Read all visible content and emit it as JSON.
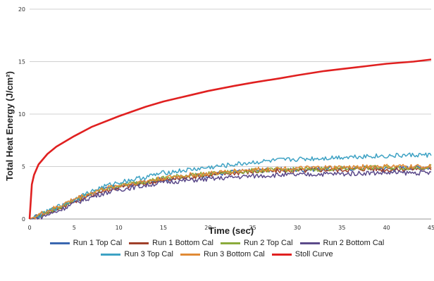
{
  "chart_data": {
    "type": "line",
    "ylabel": "Total Heat Energy (J/cm²)",
    "xlabel": "Time (sec)",
    "xlim": [
      0,
      45
    ],
    "ylim": [
      0,
      20
    ],
    "x_ticks": [
      "0",
      "5",
      "10",
      "15",
      "20",
      "25",
      "30",
      "35",
      "40",
      "45"
    ],
    "y_ticks": [
      "0",
      "5",
      "10",
      "15",
      "20"
    ],
    "grid": "horizontal",
    "legend_position": "bottom",
    "series": [
      {
        "name": "Run 1 Top Cal",
        "color": "#3a67b0",
        "x": [
          0,
          1,
          3,
          5,
          8,
          10,
          13,
          15,
          18,
          20,
          23,
          25,
          28,
          30,
          33,
          35,
          38,
          40,
          43,
          45
        ],
        "y": [
          0,
          0.3,
          1.0,
          1.8,
          2.7,
          3.1,
          3.5,
          3.8,
          4.1,
          4.2,
          4.5,
          4.6,
          4.7,
          4.7,
          4.8,
          4.8,
          4.9,
          4.8,
          4.9,
          4.9
        ]
      },
      {
        "name": "Run 1 Bottom Cal",
        "color": "#a0402a",
        "x": [
          0,
          1,
          3,
          5,
          8,
          10,
          13,
          15,
          18,
          20,
          23,
          25,
          28,
          30,
          33,
          35,
          38,
          40,
          43,
          45
        ],
        "y": [
          0,
          0.3,
          0.9,
          1.7,
          2.6,
          3.0,
          3.4,
          3.7,
          4.0,
          4.2,
          4.4,
          4.5,
          4.6,
          4.6,
          4.7,
          4.7,
          4.8,
          4.7,
          4.8,
          4.8
        ]
      },
      {
        "name": "Run 2 Top Cal",
        "color": "#8bab3c",
        "x": [
          0,
          1,
          3,
          5,
          8,
          10,
          13,
          15,
          18,
          20,
          23,
          25,
          28,
          30,
          33,
          35,
          38,
          40,
          43,
          45
        ],
        "y": [
          0,
          0.3,
          1.0,
          1.8,
          2.8,
          3.2,
          3.6,
          3.9,
          4.2,
          4.3,
          4.5,
          4.6,
          4.7,
          4.7,
          4.8,
          4.8,
          4.9,
          4.9,
          4.9,
          5.0
        ]
      },
      {
        "name": "Run 2 Bottom Cal",
        "color": "#5b4a8a",
        "x": [
          0,
          1,
          3,
          5,
          8,
          10,
          13,
          15,
          18,
          20,
          23,
          25,
          28,
          30,
          33,
          35,
          38,
          40,
          43,
          45
        ],
        "y": [
          0,
          0.1,
          0.7,
          1.5,
          2.4,
          2.8,
          3.2,
          3.5,
          3.7,
          3.8,
          4.0,
          4.1,
          4.2,
          4.2,
          4.3,
          4.3,
          4.4,
          4.4,
          4.4,
          4.4
        ]
      },
      {
        "name": "Run 3 Top Cal",
        "color": "#3ea2c4",
        "x": [
          0,
          1,
          3,
          5,
          8,
          10,
          13,
          15,
          18,
          20,
          23,
          25,
          28,
          30,
          33,
          35,
          38,
          40,
          43,
          45
        ],
        "y": [
          0,
          0.3,
          1.1,
          1.9,
          3.0,
          3.5,
          4.0,
          4.4,
          4.7,
          4.9,
          5.2,
          5.4,
          5.6,
          5.7,
          5.8,
          5.9,
          6.0,
          6.0,
          6.1,
          6.1
        ]
      },
      {
        "name": "Run 3 Bottom Cal",
        "color": "#e08a35",
        "x": [
          0,
          1,
          3,
          5,
          8,
          10,
          13,
          15,
          18,
          20,
          23,
          25,
          28,
          30,
          33,
          35,
          38,
          40,
          43,
          45
        ],
        "y": [
          0,
          0.4,
          1.1,
          1.9,
          2.8,
          3.2,
          3.6,
          3.9,
          4.2,
          4.3,
          4.6,
          4.7,
          4.8,
          4.8,
          4.9,
          4.9,
          5.0,
          5.0,
          5.0,
          5.0
        ]
      },
      {
        "name": "Stoll Curve",
        "color": "#e02020",
        "x": [
          0,
          0.25,
          0.5,
          1,
          2,
          3,
          5,
          7,
          10,
          13,
          15,
          18,
          20,
          23,
          25,
          28,
          30,
          33,
          35,
          38,
          40,
          43,
          45
        ],
        "y": [
          0,
          3.3,
          4.2,
          5.2,
          6.2,
          6.9,
          7.9,
          8.8,
          9.8,
          10.7,
          11.2,
          11.8,
          12.2,
          12.7,
          13.0,
          13.4,
          13.7,
          14.1,
          14.3,
          14.6,
          14.8,
          15.0,
          15.2
        ]
      }
    ]
  }
}
